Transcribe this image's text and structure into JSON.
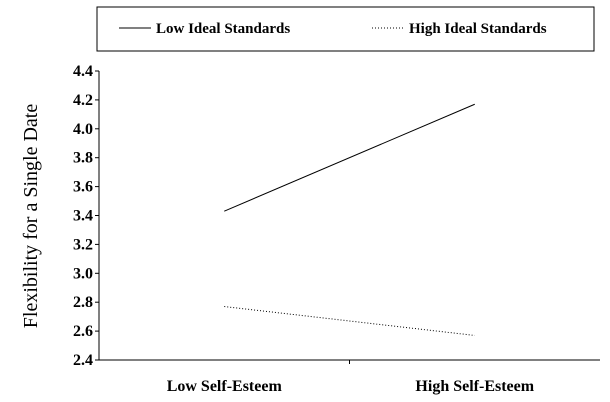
{
  "chart_data": {
    "type": "line",
    "categories": [
      "Low Self-Esteem",
      "High Self-Esteem"
    ],
    "series": [
      {
        "name": "Low Ideal Standards",
        "values": [
          3.43,
          4.17
        ],
        "style": "solid"
      },
      {
        "name": "High Ideal Standards",
        "values": [
          2.77,
          2.57
        ],
        "style": "dotted"
      }
    ],
    "ylabel": "Flexibility for a Single Date",
    "xlabel": "",
    "ylim": [
      2.4,
      4.4
    ],
    "yticks": [
      "2.4",
      "2.6",
      "2.8",
      "3.0",
      "3.2",
      "3.4",
      "3.6",
      "3.8",
      "4.0",
      "4.2",
      "4.4"
    ],
    "grid": false,
    "legend_position": "top",
    "line_color": "#000000"
  }
}
